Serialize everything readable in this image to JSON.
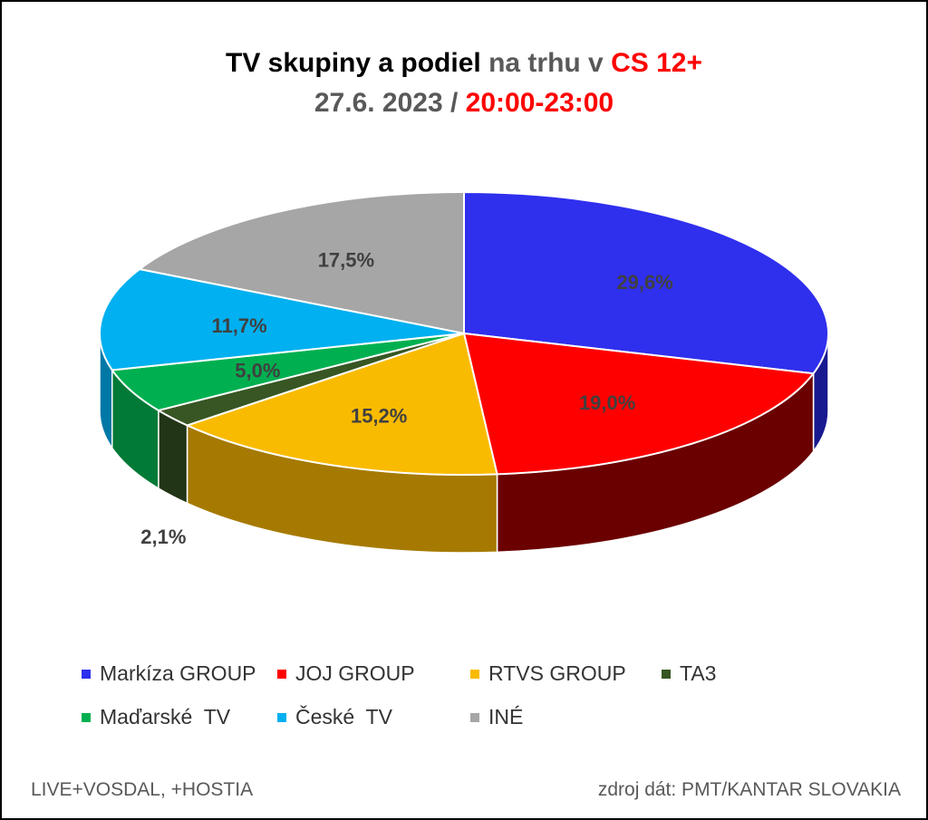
{
  "title": {
    "line1_part1": "TV skupiny a podiel",
    "line1_part2": "na trhu v",
    "line1_part3": "CS 12+",
    "line2_part1": "27.6. 2023 /",
    "line2_part2": "20:00-23:00"
  },
  "chart_data": {
    "type": "pie",
    "title": "TV skupiny a podiel na trhu v CS 12+ 27.6. 2023 / 20:00-23:00",
    "slices": [
      {
        "label": "Markíza GROUP",
        "value": 29.6,
        "value_label": "29,6%",
        "color": "#2f2fee",
        "side_color": "#1a1a90"
      },
      {
        "label": "JOJ GROUP",
        "value": 19.0,
        "value_label": "19,0%",
        "color": "#ff0000",
        "side_color": "#6b0000"
      },
      {
        "label": "RTVS GROUP",
        "value": 15.2,
        "value_label": "15,2%",
        "color": "#f9bb00",
        "side_color": "#a67a00"
      },
      {
        "label": "TA3",
        "value": 2.1,
        "value_label": "2,1%",
        "color": "#375623",
        "side_color": "#223516"
      },
      {
        "label": "Maďarské  TV",
        "value": 5.0,
        "value_label": "5,0%",
        "color": "#00b050",
        "side_color": "#007a36"
      },
      {
        "label": "České  TV",
        "value": 11.7,
        "value_label": "11,7%",
        "color": "#00b0f0",
        "side_color": "#0078a6"
      },
      {
        "label": "INÉ",
        "value": 17.5,
        "value_label": "17,5%",
        "color": "#a6a6a6",
        "side_color": "#6e6e6e"
      }
    ],
    "legend_position": "bottom"
  },
  "footer": {
    "left": "LIVE+VOSDAL, +HOSTIA",
    "right": "zdroj dát: PMT/KANTAR SLOVAKIA"
  }
}
